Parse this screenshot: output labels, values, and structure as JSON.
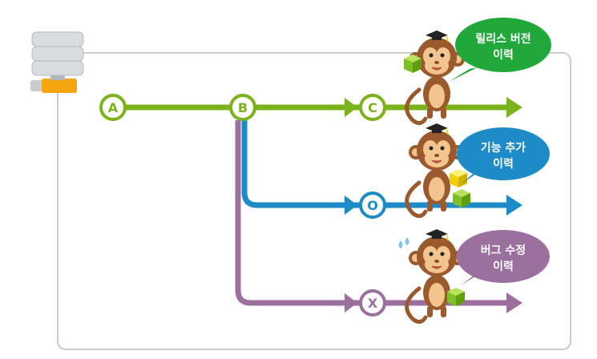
{
  "colors": {
    "green": "#7cb21b",
    "green_bubble": "#21a83a",
    "blue": "#1e8bc9",
    "purple": "#9b6f9e",
    "frame": "#cccccc",
    "server": "#c8cbd0",
    "server_connector": "#f4a510",
    "monkey_body": "#9b5a2e",
    "monkey_face": "#f2c58f",
    "cube_green": "#8ccf2e",
    "cube_yellow": "#f5d000"
  },
  "nodes": {
    "a": "A",
    "b": "B",
    "c": "C",
    "o": "O",
    "x": "X"
  },
  "bubbles": {
    "release": {
      "line1": "릴리스 버전",
      "line2": "이력"
    },
    "feature": {
      "line1": "기능 추가",
      "line2": "이력"
    },
    "bugfix": {
      "line1": "버그 수정",
      "line2": "이력"
    }
  },
  "icons": {
    "server": "server-icon",
    "monkey": "monkey-mascot-icon",
    "cube": "cube-icon"
  }
}
